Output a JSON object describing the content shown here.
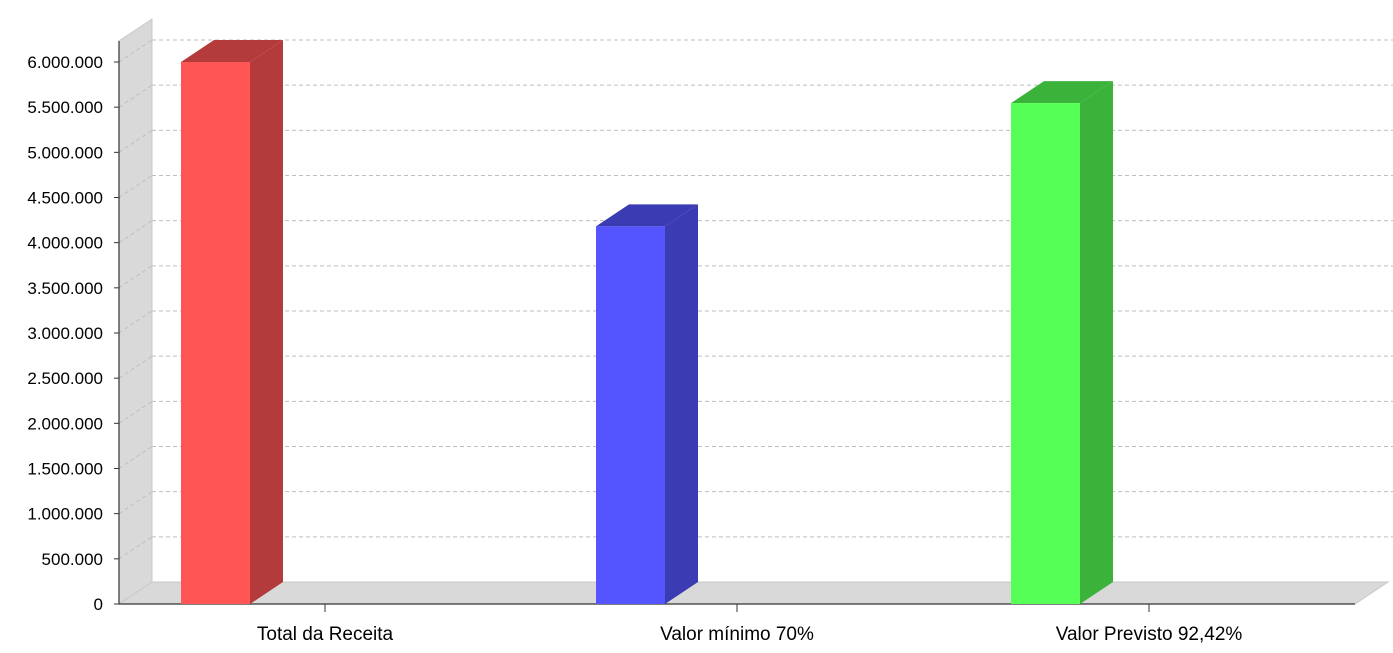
{
  "chart_data": {
    "type": "bar",
    "style": "3d",
    "categories": [
      "Total da Receita",
      "Valor mínimo 70%",
      "Valor Previsto 92,42%"
    ],
    "values": [
      6000000,
      4180000,
      5545000
    ],
    "colors": [
      "#ff5555",
      "#5555ff",
      "#55ff55"
    ],
    "side_colors": [
      "#b33b3b",
      "#3b3bb3",
      "#3bb33b"
    ],
    "ylim": [
      0,
      6000000
    ],
    "yticks": [
      0,
      500000,
      1000000,
      1500000,
      2000000,
      2500000,
      3000000,
      3500000,
      4000000,
      4500000,
      5000000,
      5500000,
      6000000
    ],
    "ytick_labels": [
      "0",
      "500.000",
      "1.000.000",
      "1.500.000",
      "2.000.000",
      "2.500.000",
      "3.000.000",
      "3.500.000",
      "4.000.000",
      "4.500.000",
      "5.000.000",
      "5.500.000",
      "6.000.000"
    ],
    "grid": true,
    "title": "",
    "xlabel": "",
    "ylabel": ""
  }
}
